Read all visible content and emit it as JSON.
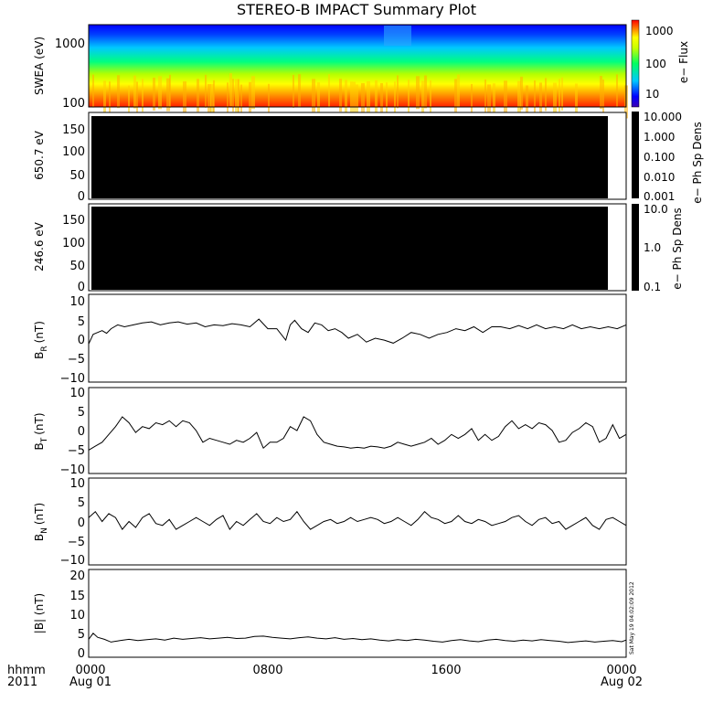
{
  "title": "STEREO-B IMPACT Summary Plot",
  "x_axis": {
    "row1_label": "hhmm",
    "row2_label": "2011",
    "ticks": [
      {
        "hour": 0,
        "time": "0000",
        "date": "Aug 01"
      },
      {
        "hour": 8,
        "time": "0800",
        "date": ""
      },
      {
        "hour": 16,
        "time": "1600",
        "date": ""
      },
      {
        "hour": 24,
        "time": "0000",
        "date": "Aug 02"
      }
    ],
    "range_hours": [
      0,
      24
    ]
  },
  "timestamp": "Sat May 19 04:02:09 2012",
  "colors": {
    "trace": "#000000",
    "frame": "#000000",
    "fill_black": "#000000"
  },
  "panels": {
    "swea": {
      "ylabel": "SWEA (eV)",
      "yticks": [
        "1000",
        "100"
      ],
      "colorbar_label": "e− Flux",
      "colorbar_ticks": [
        "1000",
        "100",
        "10"
      ],
      "scale": "log",
      "palette": [
        "#0000ff",
        "#00c8ff",
        "#00ff80",
        "#c8ff00",
        "#ffff00",
        "#ffa000",
        "#ff2000"
      ]
    },
    "pad650": {
      "ylabel": "650.7 eV",
      "yticks": [
        "150",
        "100",
        "50",
        "0"
      ],
      "colorbar_label": "e− Ph Sp Dens",
      "colorbar_ticks": [
        "10.000",
        "1.000",
        "0.100",
        "0.010",
        "0.001"
      ]
    },
    "pad246": {
      "ylabel": "246.6 eV",
      "yticks": [
        "150",
        "100",
        "50",
        "0"
      ],
      "colorbar_label": "e− Ph Sp Dens",
      "colorbar_ticks": [
        "10.0",
        "1.0",
        "0.1"
      ]
    },
    "br": {
      "ylabel_main": "B",
      "ylabel_sub": "R",
      "ylabel_unit": "(nT)",
      "yticks": [
        "10",
        "5",
        "0",
        "−5",
        "−10"
      ]
    },
    "bt": {
      "ylabel_main": "B",
      "ylabel_sub": "T",
      "ylabel_unit": "(nT)",
      "yticks": [
        "10",
        "5",
        "0",
        "−5",
        "−10"
      ]
    },
    "bn": {
      "ylabel_main": "B",
      "ylabel_sub": "N",
      "ylabel_unit": "(nT)",
      "yticks": [
        "10",
        "5",
        "0",
        "−5",
        "−10"
      ]
    },
    "bmag": {
      "ylabel": "|B| (nT)",
      "yticks": [
        "20",
        "15",
        "10",
        "5",
        "0"
      ]
    }
  },
  "chart_data": [
    {
      "type": "heatmap",
      "ylabel": "SWEA (eV)",
      "yscale": "log",
      "ylim": [
        100,
        2000
      ],
      "colorbar": {
        "label": "e− Flux",
        "scale": "log",
        "range": [
          3,
          3000
        ]
      },
      "xlim_hours": [
        0,
        24
      ]
    },
    {
      "type": "heatmap",
      "ylabel": "650.7 eV",
      "ylim": [
        0,
        180
      ],
      "fill": "black",
      "colorbar": {
        "label": "e− Ph Sp Dens",
        "scale": "log",
        "range": [
          0.001,
          10
        ]
      }
    },
    {
      "type": "heatmap",
      "ylabel": "246.6 eV",
      "ylim": [
        0,
        180
      ],
      "fill": "black",
      "colorbar": {
        "label": "e− Ph Sp Dens",
        "scale": "log",
        "range": [
          0.1,
          10
        ]
      }
    },
    {
      "type": "line",
      "key": "br",
      "ylabel": "B_R (nT)",
      "ylim": [
        -12,
        11
      ],
      "x": [
        0,
        0.2,
        0.4,
        0.6,
        0.8,
        1,
        1.3,
        1.6,
        2,
        2.4,
        2.8,
        3.2,
        3.6,
        4,
        4.4,
        4.8,
        5.2,
        5.6,
        6,
        6.4,
        6.8,
        7.2,
        7.6,
        8,
        8.4,
        8.8,
        9,
        9.2,
        9.5,
        9.8,
        10.1,
        10.4,
        10.7,
        11,
        11.3,
        11.6,
        12,
        12.4,
        12.8,
        13.2,
        13.6,
        14,
        14.4,
        14.8,
        15.2,
        15.6,
        16,
        16.4,
        16.8,
        17.2,
        17.6,
        18,
        18.4,
        18.8,
        19.2,
        19.6,
        20,
        20.4,
        20.8,
        21.2,
        21.6,
        22,
        22.4,
        22.8,
        23.2,
        23.6,
        24
      ],
      "values": [
        -2,
        0.5,
        1,
        1.5,
        0.8,
        2,
        3,
        2.5,
        3,
        3.5,
        3.8,
        3,
        3.5,
        3.8,
        3.2,
        3.5,
        2.5,
        3,
        2.8,
        3.3,
        3,
        2.5,
        4.5,
        2,
        2,
        -1,
        3,
        4.2,
        2,
        1,
        3.5,
        3,
        1.5,
        2,
        1,
        -0.5,
        0.5,
        -1.5,
        -0.5,
        -1,
        -1.8,
        -0.5,
        1,
        0.5,
        -0.5,
        0.5,
        1,
        2,
        1.5,
        2.5,
        1,
        2.5,
        2.5,
        2,
        2.8,
        2,
        3,
        2,
        2.5,
        2,
        3,
        2,
        2.5,
        2,
        2.5,
        2,
        3
      ]
    },
    {
      "type": "line",
      "key": "bt",
      "ylabel": "B_T (nT)",
      "ylim": [
        -11,
        11
      ],
      "x": [
        0,
        0.3,
        0.6,
        0.9,
        1.2,
        1.5,
        1.8,
        2.1,
        2.4,
        2.7,
        3,
        3.3,
        3.6,
        3.9,
        4.2,
        4.5,
        4.8,
        5.1,
        5.4,
        5.7,
        6,
        6.3,
        6.6,
        6.9,
        7.2,
        7.5,
        7.8,
        8.1,
        8.4,
        8.7,
        9,
        9.3,
        9.6,
        9.9,
        10.2,
        10.5,
        10.8,
        11.1,
        11.4,
        11.7,
        12,
        12.3,
        12.6,
        12.9,
        13.2,
        13.5,
        13.8,
        14.1,
        14.4,
        14.7,
        15,
        15.3,
        15.6,
        15.9,
        16.2,
        16.5,
        16.8,
        17.1,
        17.4,
        17.7,
        18,
        18.3,
        18.6,
        18.9,
        19.2,
        19.5,
        19.8,
        20.1,
        20.4,
        20.7,
        21,
        21.3,
        21.6,
        21.9,
        22.2,
        22.5,
        22.8,
        23.1,
        23.4,
        23.7,
        24
      ],
      "values": [
        -5,
        -4,
        -3,
        -1,
        1,
        3.5,
        2,
        -0.5,
        1,
        0.5,
        2,
        1.5,
        2.5,
        1,
        2.5,
        2,
        0,
        -3,
        -2,
        -2.5,
        -3,
        -3.5,
        -2.5,
        -3,
        -2,
        -0.5,
        -4.5,
        -3,
        -3,
        -2,
        1,
        0,
        3.5,
        2.5,
        -1,
        -3,
        -3.5,
        -4,
        -4.2,
        -4.5,
        -4.3,
        -4.5,
        -4,
        -4.2,
        -4.5,
        -4,
        -3,
        -3.5,
        -4,
        -3.5,
        -3,
        -2,
        -3.5,
        -2.5,
        -1,
        -2,
        -1,
        0.5,
        -2.5,
        -1,
        -2.5,
        -1.5,
        1,
        2.5,
        0.5,
        1.5,
        0.5,
        2,
        1.5,
        0,
        -3,
        -2.5,
        -0.5,
        0.5,
        2,
        1,
        -3,
        -2,
        1.5,
        -2,
        -1
      ]
    },
    {
      "type": "line",
      "key": "bn",
      "ylabel": "B_N (nT)",
      "ylim": [
        -11,
        11
      ],
      "x": [
        0,
        0.3,
        0.6,
        0.9,
        1.2,
        1.5,
        1.8,
        2.1,
        2.4,
        2.7,
        3,
        3.3,
        3.6,
        3.9,
        4.2,
        4.5,
        4.8,
        5.1,
        5.4,
        5.7,
        6,
        6.3,
        6.6,
        6.9,
        7.2,
        7.5,
        7.8,
        8.1,
        8.4,
        8.7,
        9,
        9.3,
        9.6,
        9.9,
        10.2,
        10.5,
        10.8,
        11.1,
        11.4,
        11.7,
        12,
        12.3,
        12.6,
        12.9,
        13.2,
        13.5,
        13.8,
        14.1,
        14.4,
        14.7,
        15,
        15.3,
        15.6,
        15.9,
        16.2,
        16.5,
        16.8,
        17.1,
        17.4,
        17.7,
        18,
        18.3,
        18.6,
        18.9,
        19.2,
        19.5,
        19.8,
        20.1,
        20.4,
        20.7,
        21,
        21.3,
        21.6,
        21.9,
        22.2,
        22.5,
        22.8,
        23.1,
        23.4,
        23.7,
        24
      ],
      "values": [
        1,
        2.5,
        0,
        2,
        1,
        -2,
        0,
        -1.5,
        1,
        2,
        -0.5,
        -1,
        0.5,
        -2,
        -1,
        0,
        1,
        0,
        -1,
        0.5,
        1.5,
        -2,
        0,
        -1,
        0.5,
        2,
        0,
        -0.5,
        1,
        0,
        0.5,
        2.5,
        0,
        -2,
        -1,
        0,
        0.5,
        -0.5,
        0,
        1,
        0,
        0.5,
        1,
        0.5,
        -0.5,
        0,
        1,
        0,
        -1,
        0.5,
        2.5,
        1,
        0.5,
        -0.5,
        0,
        1.5,
        0,
        -0.5,
        0.5,
        0,
        -1,
        -0.5,
        0,
        1,
        1.5,
        0,
        -1,
        0.5,
        1,
        -0.5,
        0,
        -2,
        -1,
        0,
        1,
        -1,
        -2,
        0.5,
        1,
        0,
        -1
      ]
    },
    {
      "type": "line",
      "key": "bmag",
      "ylabel": "|B| (nT)",
      "ylim": [
        -1,
        21
      ],
      "x": [
        0,
        0.2,
        0.4,
        0.7,
        1,
        1.4,
        1.8,
        2.2,
        2.6,
        3,
        3.4,
        3.8,
        4.2,
        4.6,
        5,
        5.4,
        5.8,
        6.2,
        6.6,
        7,
        7.4,
        7.8,
        8.2,
        8.6,
        9,
        9.4,
        9.8,
        10.2,
        10.6,
        11,
        11.4,
        11.8,
        12.2,
        12.6,
        13,
        13.4,
        13.8,
        14.2,
        14.6,
        15,
        15.4,
        15.8,
        16.2,
        16.6,
        17,
        17.4,
        17.8,
        18.2,
        18.6,
        19,
        19.4,
        19.8,
        20.2,
        20.6,
        21,
        21.4,
        21.8,
        22.2,
        22.6,
        23,
        23.4,
        23.8,
        24
      ],
      "values": [
        3.5,
        5,
        4,
        3.5,
        2.8,
        3.2,
        3.5,
        3.2,
        3.4,
        3.6,
        3.3,
        3.8,
        3.5,
        3.7,
        3.9,
        3.6,
        3.8,
        4,
        3.7,
        3.8,
        4.2,
        4.3,
        4,
        3.8,
        3.6,
        3.9,
        4.1,
        3.8,
        3.6,
        3.9,
        3.5,
        3.7,
        3.4,
        3.6,
        3.3,
        3.1,
        3.4,
        3.2,
        3.5,
        3.3,
        3,
        2.8,
        3.2,
        3.4,
        3.1,
        2.9,
        3.3,
        3.5,
        3.2,
        3,
        3.3,
        3.1,
        3.4,
        3.2,
        3,
        2.7,
        2.9,
        3.1,
        2.8,
        3,
        3.2,
        2.9,
        3.3
      ]
    }
  ]
}
